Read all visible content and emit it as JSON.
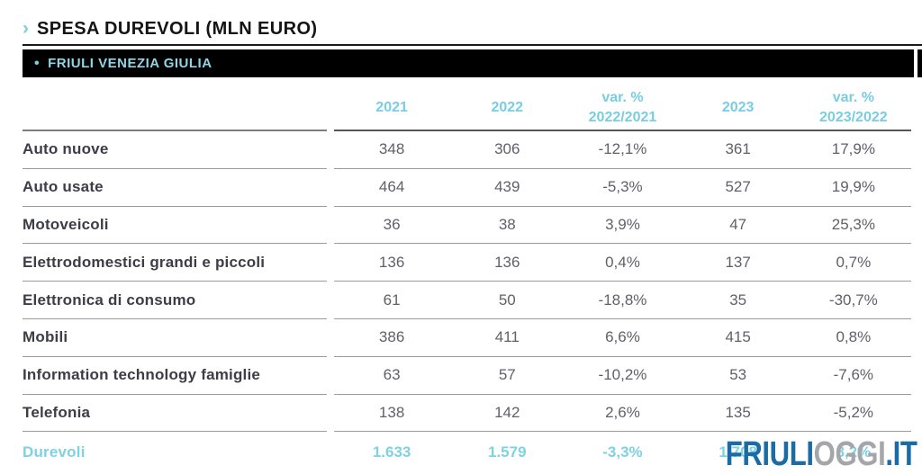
{
  "colors": {
    "accent_teal": "#7ccfe2",
    "total_teal": "#7ed2e2",
    "label_dark": "#3d3d47",
    "value_gray": "#60606a",
    "bar_black": "#000000",
    "watermark_blue": "#1b6ba6",
    "watermark_gray": "#a4a6a9"
  },
  "title": {
    "chevron": "›",
    "text": "SPESA DUREVOLI (MLN EURO)"
  },
  "region_bar": {
    "bullet": "•",
    "label": "FRIULI VENEZIA GIULIA"
  },
  "table": {
    "columns": [
      "2021",
      "2022",
      "var. %\n2022/2021",
      "2023",
      "var. %\n2023/2022"
    ],
    "rows": [
      {
        "label": "Auto nuove",
        "values": [
          "348",
          "306",
          "-12,1%",
          "361",
          "17,9%"
        ]
      },
      {
        "label": "Auto usate",
        "values": [
          "464",
          "439",
          "-5,3%",
          "527",
          "19,9%"
        ]
      },
      {
        "label": "Motoveicoli",
        "values": [
          "36",
          "38",
          "3,9%",
          "47",
          "25,3%"
        ]
      },
      {
        "label": "Elettrodomestici grandi e piccoli",
        "values": [
          "136",
          "136",
          "0,4%",
          "137",
          "0,7%"
        ]
      },
      {
        "label": "Elettronica di consumo",
        "values": [
          "61",
          "50",
          "-18,8%",
          "35",
          "-30,7%"
        ]
      },
      {
        "label": "Mobili",
        "values": [
          "386",
          "411",
          "6,6%",
          "415",
          "0,8%"
        ]
      },
      {
        "label": "Information technology famiglie",
        "values": [
          "63",
          "57",
          "-10,2%",
          "53",
          "-7,6%"
        ]
      },
      {
        "label": "Telefonia",
        "values": [
          "138",
          "142",
          "2,6%",
          "135",
          "-5,2%"
        ]
      }
    ],
    "total_row": {
      "label": "Durevoli",
      "values": [
        "1.633",
        "1.579",
        "-3,3%",
        "1.708",
        "8,2%"
      ]
    }
  },
  "watermark": {
    "part1": "FRIULI",
    "part2": "OGGI",
    "part3": ".IT"
  },
  "chart_data": {
    "type": "table",
    "title": "SPESA DUREVOLI (MLN EURO)",
    "region": "FRIULI VENEZIA GIULIA",
    "columns": [
      "2021",
      "2022",
      "var. % 2022/2021",
      "2023",
      "var. % 2023/2022"
    ],
    "rows": [
      {
        "label": "Auto nuove",
        "values": [
          348,
          306,
          -12.1,
          361,
          17.9
        ]
      },
      {
        "label": "Auto usate",
        "values": [
          464,
          439,
          -5.3,
          527,
          19.9
        ]
      },
      {
        "label": "Motoveicoli",
        "values": [
          36,
          38,
          3.9,
          47,
          25.3
        ]
      },
      {
        "label": "Elettrodomestici grandi e piccoli",
        "values": [
          136,
          136,
          0.4,
          137,
          0.7
        ]
      },
      {
        "label": "Elettronica di consumo",
        "values": [
          61,
          50,
          -18.8,
          35,
          -30.7
        ]
      },
      {
        "label": "Mobili",
        "values": [
          386,
          411,
          6.6,
          415,
          0.8
        ]
      },
      {
        "label": "Information technology famiglie",
        "values": [
          63,
          57,
          -10.2,
          53,
          -7.6
        ]
      },
      {
        "label": "Telefonia",
        "values": [
          138,
          142,
          2.6,
          135,
          -5.2
        ]
      },
      {
        "label": "Durevoli",
        "values": [
          1633,
          1579,
          -3.3,
          1708,
          8.2
        ]
      }
    ]
  }
}
